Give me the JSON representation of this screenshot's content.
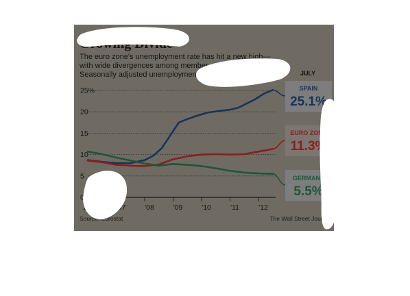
{
  "chart": {
    "title": "Growing Divide",
    "subtitle_lines": [
      "The euro zone's unemployment rate has hit a new high—",
      "with wide divergences among member countries.",
      "Seasonally adjusted unemployment rate"
    ],
    "source": "Source: Eurostat",
    "publisher": "The Wall Street Journal",
    "latest_header": "JULY",
    "colors": {
      "panel": "#6f6b62",
      "spain": "#17345a",
      "euro": "#8e1c1f",
      "germany": "#1c5737"
    }
  },
  "chart_data": {
    "type": "line",
    "title": "Growing Divide",
    "ylabel": "",
    "xlabel": "",
    "ylim": [
      0,
      25
    ],
    "yticks": [
      0,
      5,
      10,
      15,
      20,
      25
    ],
    "ytick_labels": [
      "0",
      "5",
      "10",
      "15",
      "20",
      "25%"
    ],
    "xlim": [
      2006,
      2012.6
    ],
    "xticks": [
      2006,
      2007,
      2008,
      2009,
      2010,
      2011,
      2012
    ],
    "xtick_labels": [
      "2006",
      "'07",
      "'08",
      "'09",
      "'10",
      "'11",
      "'12"
    ],
    "grid": true,
    "series": [
      {
        "name": "SPAIN",
        "latest_label": "25.1%",
        "color": "#17345a",
        "x": [
          2006.0,
          2006.5,
          2007.0,
          2007.5,
          2008.0,
          2008.3,
          2008.6,
          2008.9,
          2009.2,
          2009.5,
          2009.8,
          2010.2,
          2010.6,
          2011.0,
          2011.3,
          2011.6,
          2011.9,
          2012.2,
          2012.5
        ],
        "y": [
          8.7,
          8.3,
          8.0,
          8.0,
          8.7,
          9.7,
          11.5,
          14.5,
          17.5,
          18.3,
          19.0,
          19.8,
          20.2,
          20.5,
          21.0,
          22.0,
          23.0,
          24.3,
          25.1
        ]
      },
      {
        "name": "EURO ZONE",
        "latest_label": "11.3%",
        "color": "#8e1c1f",
        "x": [
          2006.0,
          2006.5,
          2007.0,
          2007.5,
          2008.0,
          2008.5,
          2009.0,
          2009.5,
          2010.0,
          2010.5,
          2011.0,
          2011.5,
          2012.0,
          2012.5
        ],
        "y": [
          8.6,
          8.2,
          7.6,
          7.4,
          7.3,
          7.7,
          8.9,
          9.6,
          10.0,
          10.1,
          10.0,
          10.1,
          10.7,
          11.3
        ]
      },
      {
        "name": "GERMANY",
        "latest_label": "5.5%",
        "color": "#1c5737",
        "x": [
          2006.0,
          2006.5,
          2007.0,
          2007.5,
          2008.0,
          2008.5,
          2009.0,
          2009.5,
          2010.0,
          2010.5,
          2011.0,
          2011.5,
          2012.0,
          2012.5
        ],
        "y": [
          10.7,
          10.1,
          9.3,
          8.6,
          7.9,
          7.4,
          7.8,
          7.6,
          7.3,
          6.8,
          6.2,
          5.8,
          5.6,
          5.5
        ]
      }
    ]
  }
}
